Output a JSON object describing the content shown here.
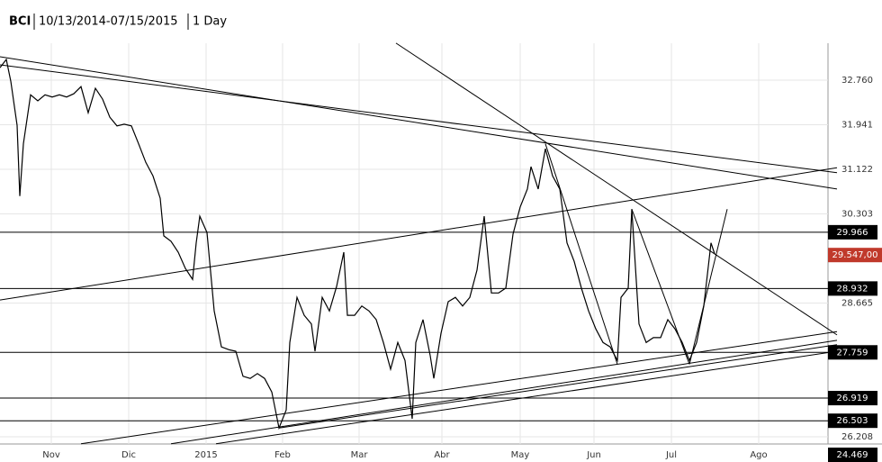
{
  "chart_data": {
    "type": "line",
    "symbol": "BCI",
    "date_range": "10/13/2014-07/15/2015",
    "interval": "1 Day",
    "color": "#000000",
    "xlim": [
      0,
      230
    ],
    "xticks": [
      {
        "value": 14.25,
        "label": "Nov"
      },
      {
        "value": 35.75,
        "label": "Dic"
      },
      {
        "value": 57.25,
        "label": "2015"
      },
      {
        "value": 78.5,
        "label": "Feb"
      },
      {
        "value": 99.75,
        "label": "Mar"
      },
      {
        "value": 122.75,
        "label": "Abr"
      },
      {
        "value": 144.5,
        "label": "May"
      },
      {
        "value": 165,
        "label": "Jun"
      },
      {
        "value": 186.5,
        "label": "Jul"
      },
      {
        "value": 210.75,
        "label": "Ago"
      }
    ],
    "ylim": [
      26.076,
      33.438
    ],
    "yticks": [
      {
        "value": 32.76,
        "label": "32.760"
      },
      31.941,
      31.122,
      30.303,
      28.665,
      26.208
    ],
    "grid": true,
    "x": [
      0,
      1.75,
      3,
      4.75,
      5.5,
      6.5,
      8.5,
      10.5,
      12.5,
      14.5,
      16.5,
      18.5,
      20.5,
      22.5,
      24.5,
      26.5,
      28.5,
      30.5,
      32.5,
      34.5,
      36.5,
      38.5,
      40.5,
      42.5,
      44.5,
      45.5,
      47.5,
      49.5,
      51.5,
      53.5,
      54.5,
      55.5,
      57.5,
      59.5,
      61.5,
      63.5,
      65.5,
      67.5,
      69.5,
      71.5,
      73.5,
      75.5,
      77.5,
      79.5,
      80.5,
      82.5,
      84.5,
      86.5,
      87.5,
      89.5,
      91.5,
      93.5,
      95.5,
      96.5,
      98.5,
      100.5,
      102.5,
      104.5,
      106.5,
      108.5,
      110.5,
      112.5,
      114.5,
      115.5,
      117.5,
      119.5,
      120.5,
      122.5,
      124.5,
      126.5,
      128.5,
      130.5,
      132.5,
      134.5,
      136.5,
      138.5,
      140.5,
      142.5,
      144.5,
      146.5,
      147.5,
      149.5,
      151.5,
      153.5,
      155.5,
      157.5,
      159.5,
      161.5,
      163.5,
      165.5,
      167.5,
      169.5,
      171.5,
      172.5,
      174.5,
      175.5,
      177.5,
      179.5,
      181.5,
      183.5,
      185.5,
      187.5,
      189.5,
      191.5,
      193.5,
      195.5,
      197.5,
      198.5
    ],
    "values": [
      32.99,
      33.14,
      32.74,
      31.93,
      30.63,
      31.59,
      32.49,
      32.38,
      32.49,
      32.45,
      32.49,
      32.45,
      32.51,
      32.64,
      32.16,
      32.61,
      32.41,
      32.08,
      31.92,
      31.95,
      31.92,
      31.59,
      31.25,
      31.0,
      30.59,
      29.9,
      29.8,
      29.6,
      29.3,
      29.1,
      29.77,
      30.26,
      29.96,
      28.52,
      27.86,
      27.81,
      27.78,
      27.32,
      27.28,
      27.37,
      27.28,
      27.03,
      26.37,
      26.7,
      27.94,
      28.77,
      28.44,
      28.28,
      27.78,
      28.77,
      28.52,
      28.97,
      29.6,
      28.44,
      28.44,
      28.61,
      28.52,
      28.36,
      27.94,
      27.45,
      27.94,
      27.61,
      26.54,
      27.94,
      28.36,
      27.7,
      27.28,
      28.11,
      28.69,
      28.77,
      28.61,
      28.77,
      29.27,
      30.26,
      28.85,
      28.85,
      28.94,
      29.93,
      30.43,
      30.76,
      31.17,
      30.76,
      31.5,
      31.0,
      30.76,
      29.77,
      29.43,
      28.94,
      28.52,
      28.19,
      27.94,
      27.86,
      27.61,
      28.77,
      28.94,
      30.39,
      28.28,
      27.94,
      28.03,
      28.03,
      28.36,
      28.19,
      27.94,
      27.61,
      27.94,
      28.61,
      29.77,
      29.57
    ],
    "trend_lines": [
      {
        "x": [
          0,
          232.5
        ],
        "values": [
          33.19,
          30.76
        ]
      },
      {
        "x": [
          0,
          232.5
        ],
        "values": [
          33.04,
          31.06
        ]
      },
      {
        "x": [
          110,
          232.5
        ],
        "values": [
          33.44,
          28.08
        ]
      },
      {
        "x": [
          0,
          232.5
        ],
        "values": [
          28.72,
          31.15
        ]
      },
      {
        "x": [
          22.5,
          232.5
        ],
        "values": [
          26.08,
          28.14
        ]
      },
      {
        "x": [
          47.5,
          232.5
        ],
        "values": [
          26.08,
          27.98
        ]
      },
      {
        "x": [
          60,
          232.5
        ],
        "values": [
          26.08,
          27.78
        ]
      },
      {
        "x": [
          77.5,
          232.5
        ],
        "values": [
          26.37,
          27.9
        ]
      },
      {
        "x": [
          151.5,
          171.5
        ],
        "values": [
          31.59,
          27.54
        ]
      },
      {
        "x": [
          175.5,
          191.5
        ],
        "values": [
          30.39,
          27.54
        ]
      },
      {
        "x": [
          191.5,
          202
        ],
        "values": [
          27.54,
          30.39
        ]
      }
    ],
    "levels": [
      29.966,
      28.932,
      27.759,
      26.919,
      26.503
    ],
    "last_price": {
      "value": 29.547,
      "label": "29.547,00"
    },
    "last_price_color": "#c0392b",
    "bottom_label": "24.469"
  }
}
